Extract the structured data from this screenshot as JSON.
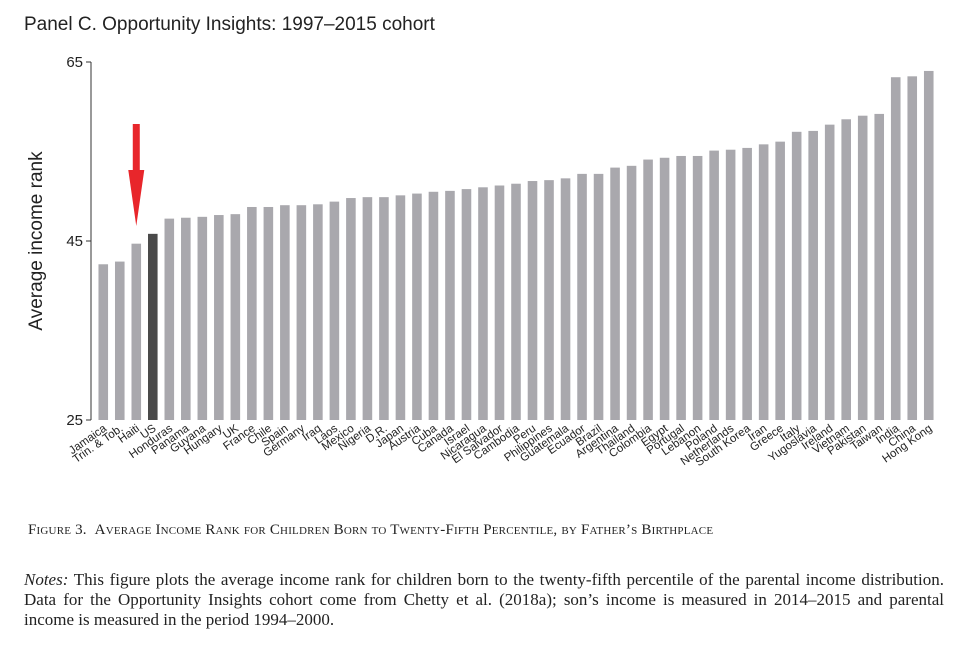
{
  "panel_title": "Panel C. Opportunity Insights: 1997–2015 cohort",
  "figure": {
    "number": "Figure 3.",
    "title": "Average Income Rank for Children Born to Twenty-Fifth Percentile, by Father’s Birthplace"
  },
  "notes": {
    "label": "Notes:",
    "text": "This figure plots the average income rank for children born to the twenty-fifth percentile of the parental income distribution. Data for the Opportunity Insights cohort come from Chetty et al. (2018a); son’s income is measured in 2014–2015 and parental income is measured in the period 1994–2000."
  },
  "colors": {
    "bar": "#a9a8ad",
    "highlight_bar": "#4a4a4a",
    "arrow": "#e8262b",
    "text": "#222222"
  },
  "chart_data": {
    "type": "bar",
    "ylabel": "Average income rank",
    "xlabel": "",
    "ylim": [
      25,
      65
    ],
    "yticks": [
      25,
      45,
      65
    ],
    "grid": false,
    "highlight": "US",
    "annotation": {
      "type": "arrow",
      "points_to": "Haiti",
      "color": "#e8262b"
    },
    "categories": [
      "Jamaica",
      "Trin. & Tob.",
      "Haiti",
      "US",
      "Honduras",
      "Panama",
      "Guyana",
      "Hungary",
      "UK",
      "France",
      "Chile",
      "Spain",
      "Germany",
      "Iraq",
      "Laos",
      "Mexico",
      "Nigeria",
      "D.R.",
      "Japan",
      "Austria",
      "Cuba",
      "Canada",
      "Israel",
      "Nicaragua",
      "El Salvador",
      "Cambodia",
      "Peru",
      "Philippines",
      "Guatemala",
      "Ecuador",
      "Brazil",
      "Argentina",
      "Thailand",
      "Colombia",
      "Egypt",
      "Portugal",
      "Lebanon",
      "Poland",
      "Netherlands",
      "South Korea",
      "Iran",
      "Greece",
      "Italy",
      "Yugoslavia",
      "Ireland",
      "Vietnam",
      "Pakistan",
      "Taiwan",
      "India",
      "China",
      "Hong Kong"
    ],
    "values": [
      42.4,
      42.7,
      44.7,
      45.8,
      47.5,
      47.6,
      47.7,
      47.9,
      48.0,
      48.8,
      48.8,
      49.0,
      49.0,
      49.1,
      49.4,
      49.8,
      49.9,
      49.9,
      50.1,
      50.3,
      50.5,
      50.6,
      50.8,
      51.0,
      51.2,
      51.4,
      51.7,
      51.8,
      52.0,
      52.5,
      52.5,
      53.2,
      53.4,
      54.1,
      54.3,
      54.5,
      54.5,
      55.1,
      55.2,
      55.4,
      55.8,
      56.1,
      57.2,
      57.3,
      58.0,
      58.6,
      59.0,
      59.2,
      63.3,
      63.4,
      64.0
    ]
  }
}
